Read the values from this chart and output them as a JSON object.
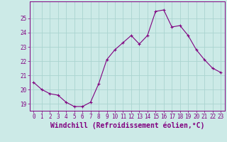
{
  "x": [
    0,
    1,
    2,
    3,
    4,
    5,
    6,
    7,
    8,
    9,
    10,
    11,
    12,
    13,
    14,
    15,
    16,
    17,
    18,
    19,
    20,
    21,
    22,
    23
  ],
  "y": [
    20.5,
    20.0,
    19.7,
    19.6,
    19.1,
    18.8,
    18.8,
    19.1,
    20.4,
    22.1,
    22.8,
    23.3,
    23.8,
    23.2,
    23.8,
    25.5,
    25.6,
    24.4,
    24.5,
    23.8,
    22.8,
    22.1,
    21.5,
    21.2
  ],
  "line_color": "#800080",
  "marker": "+",
  "marker_color": "#800080",
  "bg_color": "#cceae7",
  "grid_color": "#aad4d0",
  "tick_color": "#800080",
  "xlabel": "Windchill (Refroidissement éolien,°C)",
  "xlabel_fontsize": 7,
  "ylim": [
    18.5,
    26.2
  ],
  "xlim": [
    -0.5,
    23.5
  ],
  "yticks": [
    19,
    20,
    21,
    22,
    23,
    24,
    25
  ],
  "xticks": [
    0,
    1,
    2,
    3,
    4,
    5,
    6,
    7,
    8,
    9,
    10,
    11,
    12,
    13,
    14,
    15,
    16,
    17,
    18,
    19,
    20,
    21,
    22,
    23
  ],
  "tick_fontsize": 5.5,
  "spine_color": "#800080",
  "font_family": "monospace",
  "linewidth": 0.8,
  "markersize": 3.5
}
